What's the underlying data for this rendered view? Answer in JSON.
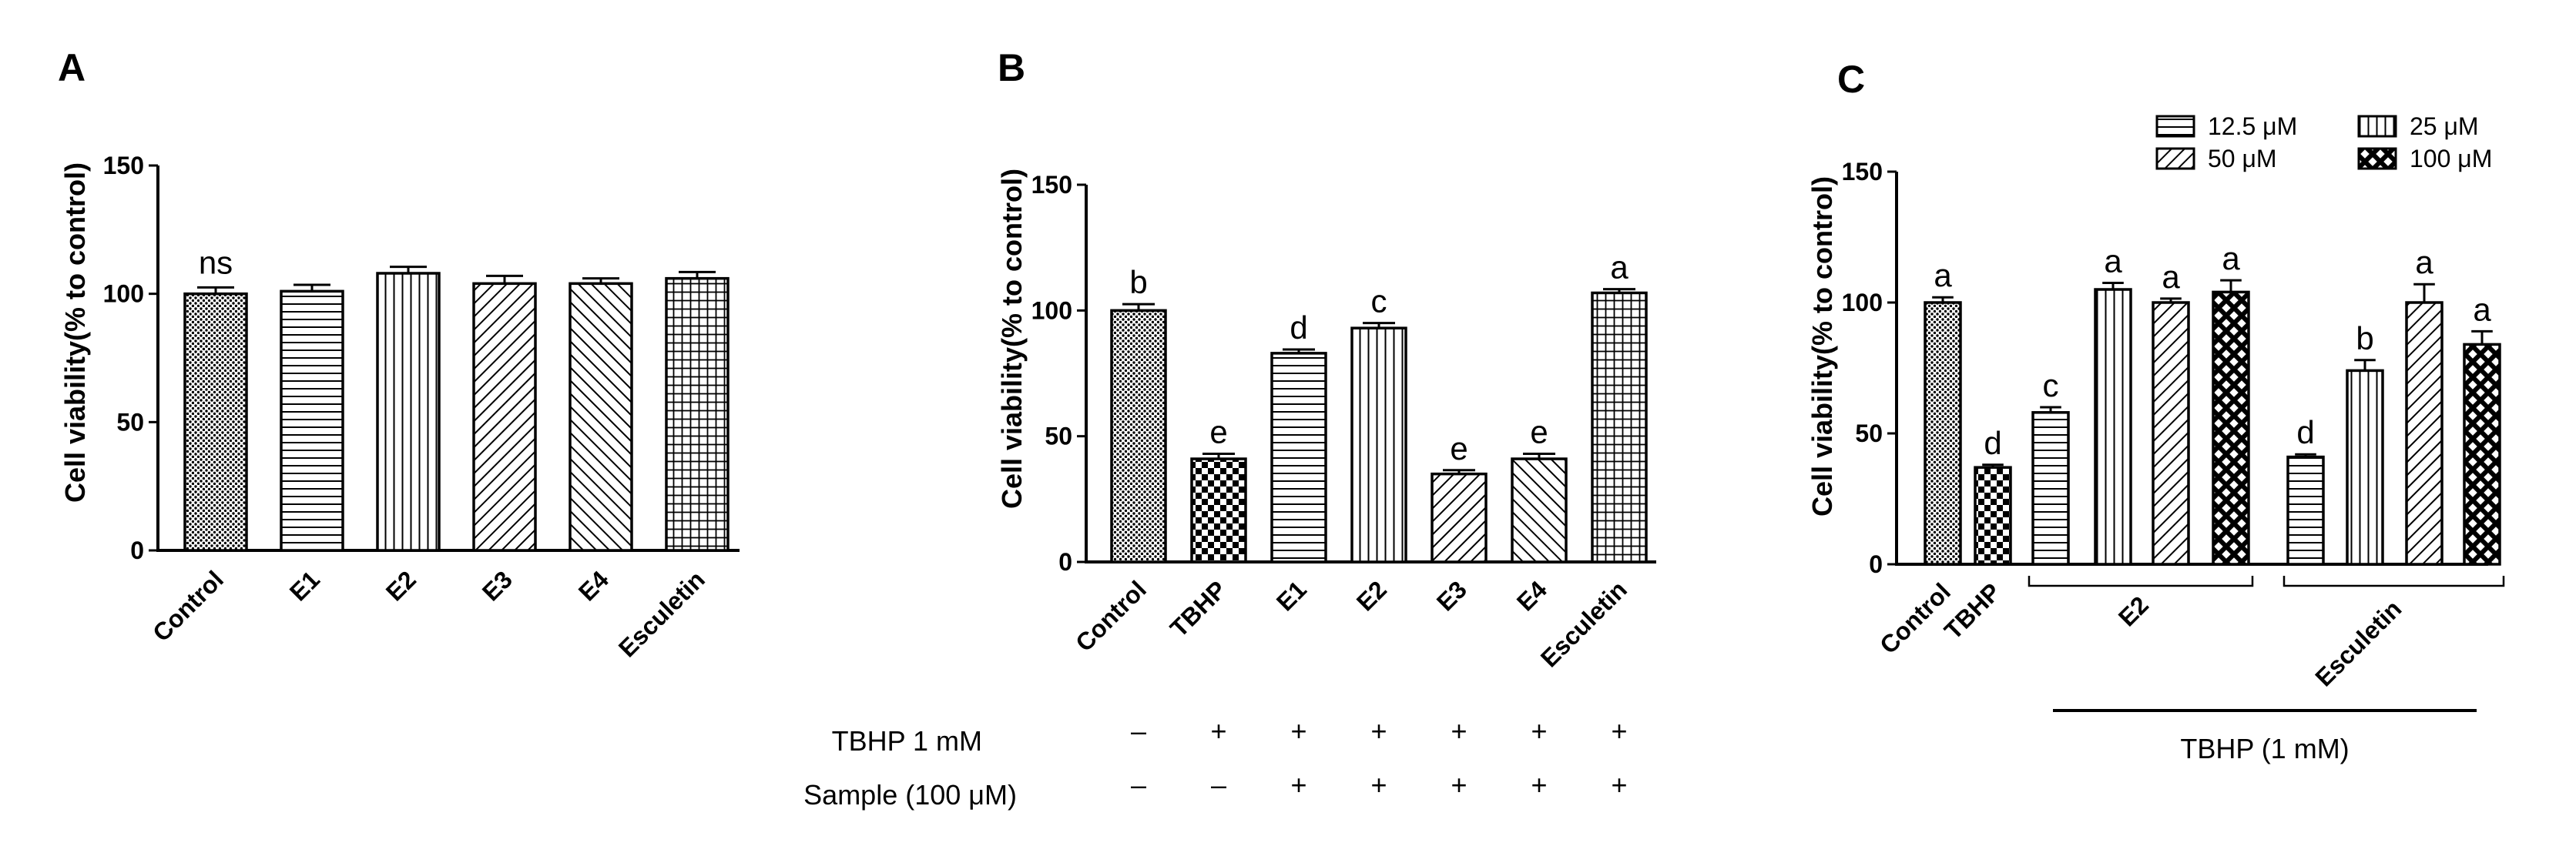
{
  "chart_data": [
    {
      "panel_label": "A",
      "type": "bar",
      "ylabel": "Cell viability(% to control)",
      "ylim": [
        0,
        150
      ],
      "yticks": [
        "0",
        "50",
        "100",
        "150"
      ],
      "categories": [
        "Control",
        "E1",
        "E2",
        "E3",
        "E4",
        "Esculetin"
      ],
      "values": [
        100,
        101,
        108,
        104,
        104,
        106
      ],
      "errors": [
        2.5,
        2.5,
        2.5,
        3.0,
        2.0,
        2.5
      ],
      "patterns": [
        "dots",
        "horizontal",
        "vertical",
        "diagonal-right",
        "diagonal-left",
        "grid"
      ],
      "annotations": [
        {
          "category": "Control",
          "text": "ns"
        }
      ]
    },
    {
      "panel_label": "B",
      "type": "bar",
      "ylabel": "Cell viability(% to control)",
      "ylim": [
        0,
        150
      ],
      "yticks": [
        "0",
        "50",
        "100",
        "150"
      ],
      "categories": [
        "Control",
        "TBHP",
        "E1",
        "E2",
        "E3",
        "E4",
        "Esculetin"
      ],
      "values": [
        100,
        41,
        83,
        93,
        35,
        41,
        107
      ],
      "errors": [
        2.5,
        2.0,
        1.5,
        2.0,
        1.5,
        2.0,
        1.5
      ],
      "patterns": [
        "dots",
        "checker",
        "horizontal",
        "vertical",
        "diagonal-right",
        "diagonal-left",
        "grid"
      ],
      "letters": [
        "b",
        "e",
        "d",
        "c",
        "e",
        "e",
        "a"
      ],
      "conditions": [
        {
          "label": "TBHP 1 mM",
          "marks": [
            "–",
            "+",
            "+",
            "+",
            "+",
            "+",
            "+"
          ]
        },
        {
          "label": "Sample (100 μM)",
          "marks": [
            "–",
            "–",
            "+",
            "+",
            "+",
            "+",
            "+"
          ]
        }
      ]
    },
    {
      "panel_label": "C",
      "type": "bar",
      "ylabel": "Cell viability(% to control)",
      "ylim": [
        0,
        150
      ],
      "yticks": [
        "0",
        "50",
        "100",
        "150"
      ],
      "bars": [
        {
          "group": "Control",
          "value": 100,
          "error": 2.0,
          "pattern": "dots",
          "letter": "a"
        },
        {
          "group": "TBHP",
          "value": 37,
          "error": 1.0,
          "pattern": "checker",
          "letter": "d"
        },
        {
          "group": "E2",
          "conc": "12.5 μM",
          "value": 58,
          "error": 2.0,
          "pattern": "horizontal",
          "letter": "c"
        },
        {
          "group": "E2",
          "conc": "25 μM",
          "value": 105,
          "error": 2.5,
          "pattern": "vertical",
          "letter": "a"
        },
        {
          "group": "E2",
          "conc": "50 μM",
          "value": 100,
          "error": 1.5,
          "pattern": "diagonal-right",
          "letter": "a"
        },
        {
          "group": "E2",
          "conc": "100 μM",
          "value": 104,
          "error": 4.5,
          "pattern": "crosshatch",
          "letter": "a"
        },
        {
          "group": "Esculetin",
          "conc": "12.5 μM",
          "value": 41,
          "error": 1.0,
          "pattern": "horizontal",
          "letter": "d"
        },
        {
          "group": "Esculetin",
          "conc": "25 μM",
          "value": 74,
          "error": 4.0,
          "pattern": "vertical",
          "letter": "b"
        },
        {
          "group": "Esculetin",
          "conc": "50 μM",
          "value": 100,
          "error": 7.0,
          "pattern": "diagonal-right",
          "letter": "a"
        },
        {
          "group": "Esculetin",
          "conc": "100 μM",
          "value": 84,
          "error": 5.0,
          "pattern": "crosshatch",
          "letter": "a"
        }
      ],
      "category_labels": [
        "Control",
        "TBHP",
        "E2",
        "Esculetin"
      ],
      "legend": [
        {
          "label": "12.5 μM",
          "pattern": "horizontal"
        },
        {
          "label": "25 μM",
          "pattern": "vertical"
        },
        {
          "label": "50 μM",
          "pattern": "diagonal-right"
        },
        {
          "label": "100 μM",
          "pattern": "crosshatch"
        }
      ],
      "treatment_label": "TBHP (1 mM)"
    }
  ]
}
